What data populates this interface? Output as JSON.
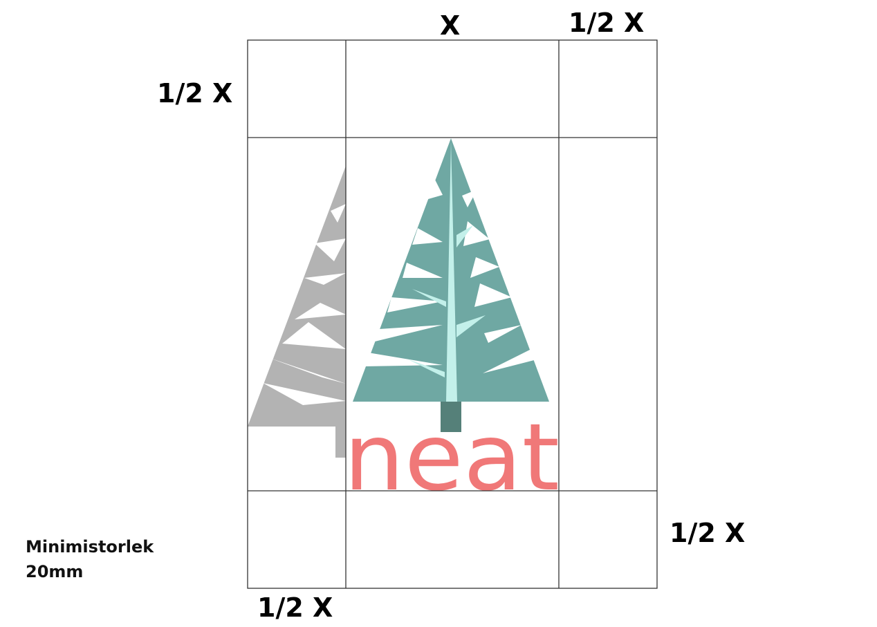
{
  "dimensions": {
    "top_center": "X",
    "top_right": "1/2 X",
    "left": "1/2 X",
    "right": "1/2 X",
    "bottom": "1/2 X"
  },
  "caption": {
    "line1": "Minimistorlek",
    "line2": "20mm"
  },
  "logo": {
    "wordmark": "neat",
    "colors": {
      "tree": "#6fa8a3",
      "trunk_highlight": "#c3f0ea",
      "trunk_base": "#558079",
      "wordmark": "#f07878",
      "ghost_tree": "#b3b3b3",
      "grid_lines": "#333333"
    }
  }
}
